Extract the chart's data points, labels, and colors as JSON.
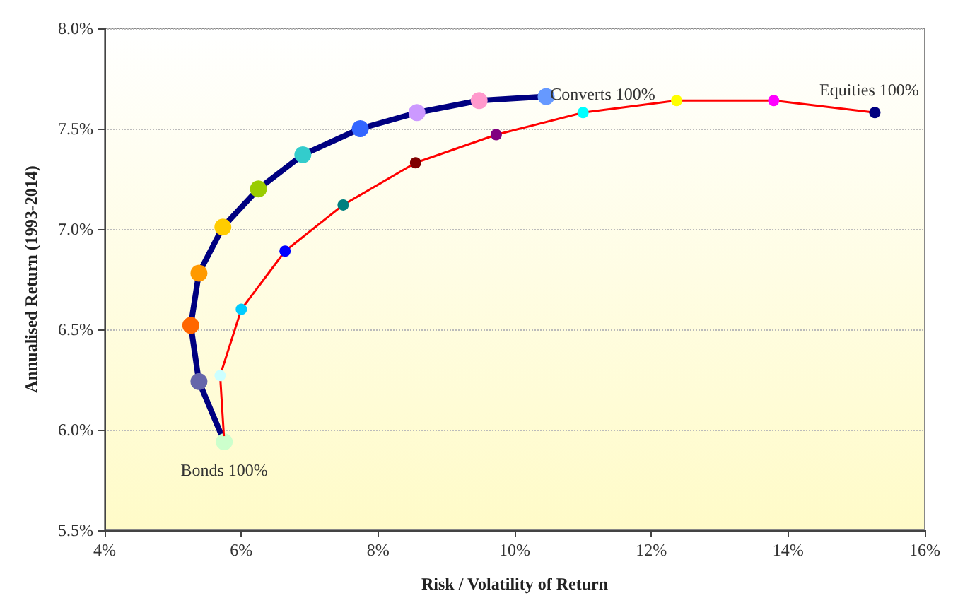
{
  "chart_data": {
    "type": "line",
    "xlabel": "Risk / Volatility of Return",
    "ylabel": "Annualised Return (1993-2014)",
    "xlim": [
      4,
      16
    ],
    "xticks": [
      {
        "value": 4,
        "label": "4%"
      },
      {
        "value": 6,
        "label": "6%"
      },
      {
        "value": 8,
        "label": "8%"
      },
      {
        "value": 10,
        "label": "10%"
      },
      {
        "value": 12,
        "label": "12%"
      },
      {
        "value": 14,
        "label": "14%"
      },
      {
        "value": 16,
        "label": "16%"
      }
    ],
    "ylim": [
      5.5,
      8
    ],
    "yticks": [
      {
        "value": 5.5,
        "label": "5.5%"
      },
      {
        "value": 6,
        "label": "6.0%"
      },
      {
        "value": 6.5,
        "label": "6.5%"
      },
      {
        "value": 7,
        "label": "7.0%"
      },
      {
        "value": 7.5,
        "label": "7.5%"
      },
      {
        "value": 8,
        "label": "8.0%"
      }
    ],
    "grid": "y",
    "marker": "circle",
    "series": [
      {
        "color": "#000080",
        "x": [
          5.75,
          5.38,
          5.26,
          5.38,
          5.73,
          6.25,
          6.9,
          7.74,
          8.57,
          9.48,
          10.46
        ],
        "values": [
          5.94,
          6.24,
          6.52,
          6.78,
          7.01,
          7.2,
          7.37,
          7.5,
          7.58,
          7.64,
          7.66
        ],
        "colors": [
          "#ccffcc",
          "#6666aa",
          "#ff6600",
          "#ff9900",
          "#ffcc00",
          "#99cc00",
          "#33cccc",
          "#3366ff",
          "#cc99ff",
          "#ff99cc",
          "#6699ff"
        ]
      },
      {
        "color": "#ff0000",
        "x": [
          5.75,
          5.69,
          6.0,
          6.64,
          7.49,
          8.55,
          9.73,
          11.0,
          12.37,
          13.79,
          15.27
        ],
        "values": [
          5.94,
          6.27,
          6.6,
          6.89,
          7.12,
          7.33,
          7.47,
          7.58,
          7.64,
          7.64,
          7.58
        ],
        "colors": [
          "#ccffcc",
          "#ccffff",
          "#00ccff",
          "#0000ff",
          "#008080",
          "#800000",
          "#800080",
          "#00ffff",
          "#ffff00",
          "#ff00ff",
          "#000080"
        ]
      }
    ],
    "annotations": [
      {
        "text": "Bonds 100%",
        "x": 5.75,
        "y": 5.94
      },
      {
        "text": "Converts 100%",
        "x": 10.46,
        "y": 7.66
      },
      {
        "text": "Equities 100%",
        "x": 15.27,
        "y": 7.58
      }
    ]
  }
}
